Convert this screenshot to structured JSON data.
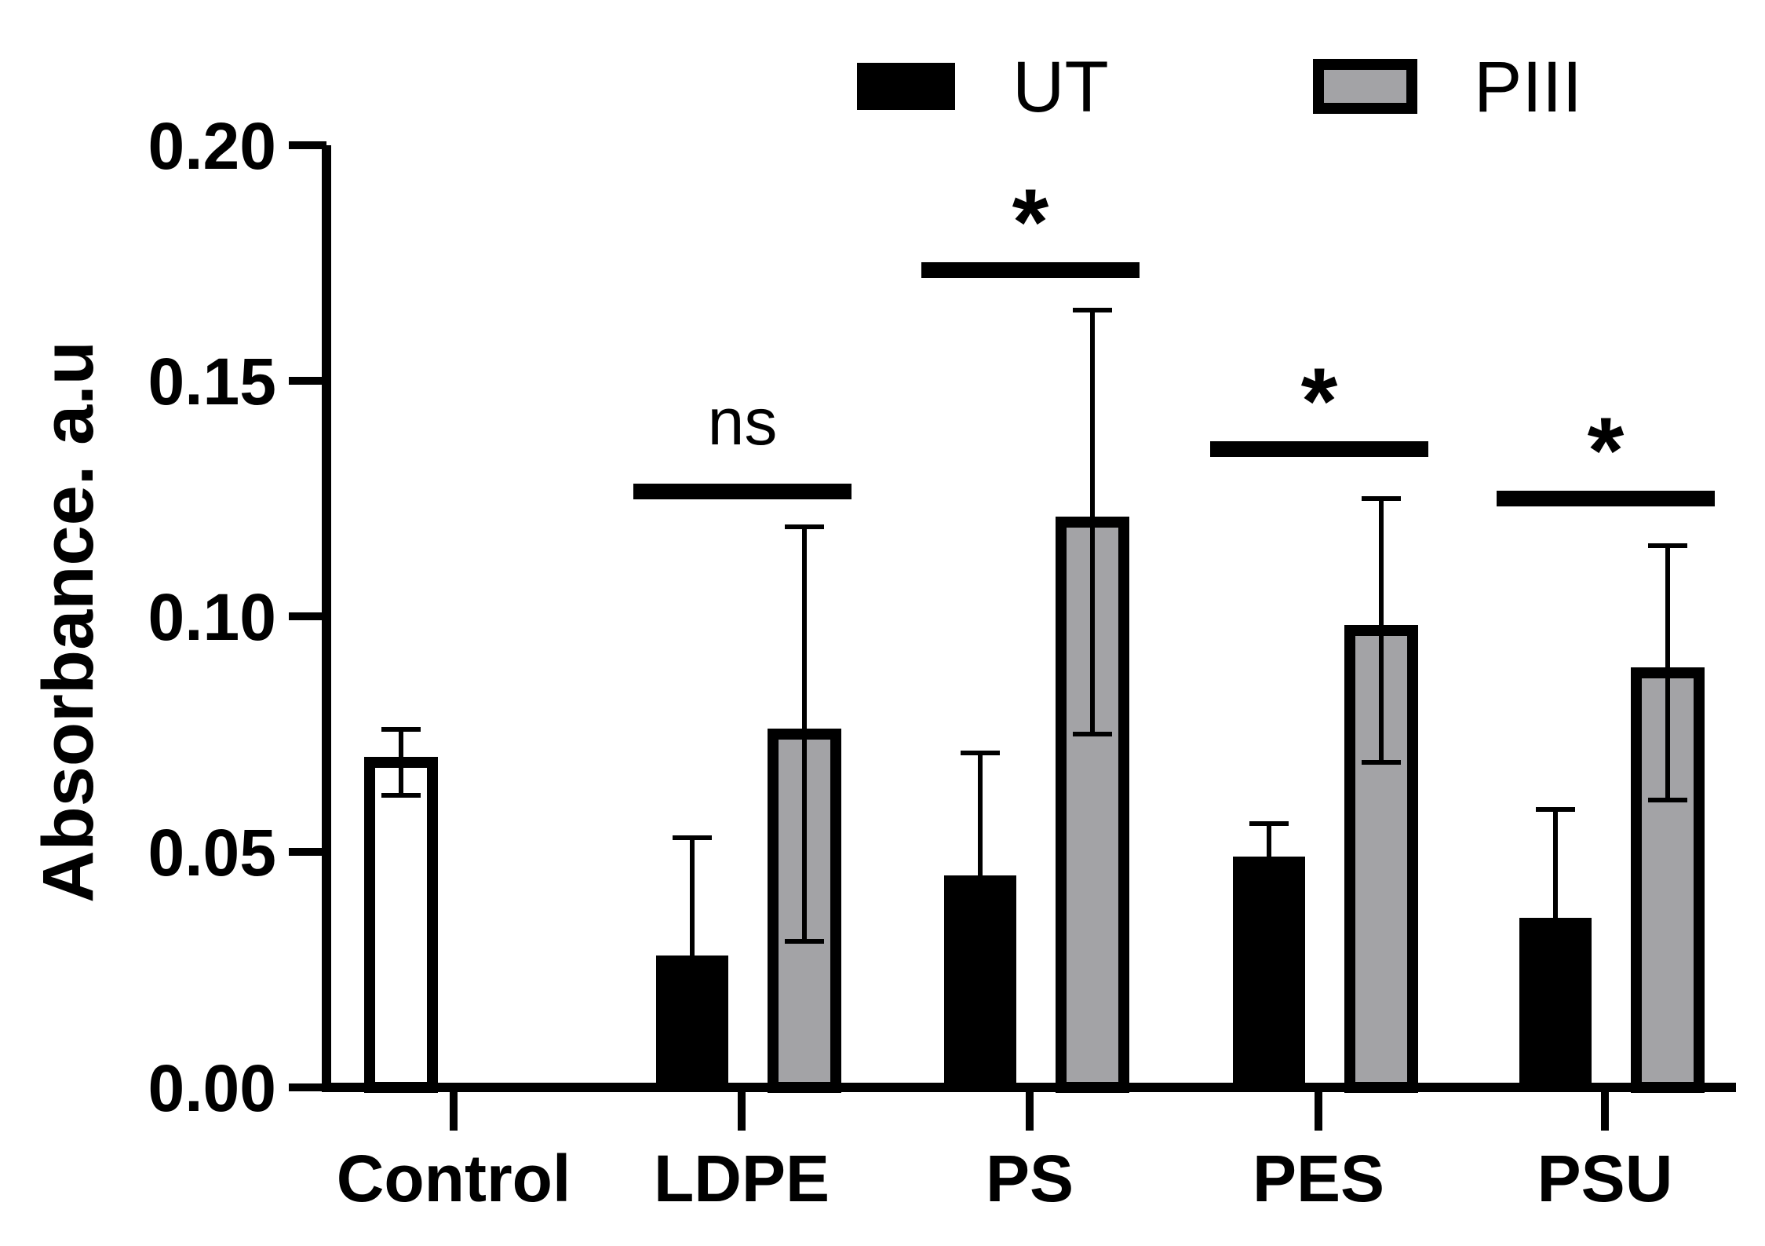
{
  "chart_data": {
    "type": "bar",
    "title": "",
    "xlabel": "",
    "ylabel": "Absorbance. a.u",
    "ylim": [
      0,
      0.2
    ],
    "yticks": [
      "0.00",
      "0.05",
      "0.10",
      "0.15",
      "0.20"
    ],
    "tick_values": [
      0,
      0.05,
      0.1,
      0.15,
      0.2
    ],
    "grid": false,
    "legend_position": "top-right",
    "categories": [
      "Control",
      "LDPE",
      "PS",
      "PES",
      "PSU"
    ],
    "control": {
      "name": "Control",
      "value": 0.069,
      "error": 0.007,
      "color": "#ffffff"
    },
    "series": [
      {
        "name": "UT",
        "color": "#000000",
        "values": [
          null,
          0.028,
          0.045,
          0.049,
          0.036
        ],
        "errors": [
          null,
          0.025,
          0.026,
          0.007,
          0.023
        ]
      },
      {
        "name": "PIII",
        "color": "#a3a3a6",
        "values": [
          null,
          0.075,
          0.12,
          0.097,
          0.088
        ],
        "errors": [
          null,
          0.044,
          0.045,
          0.028,
          0.027
        ]
      }
    ],
    "significance": [
      {
        "category": "LDPE",
        "label": "ns",
        "level": 0.1265
      },
      {
        "category": "PS",
        "label": "*",
        "level": 0.1735
      },
      {
        "category": "PES",
        "label": "*",
        "level": 0.1355
      },
      {
        "category": "PSU",
        "label": "*",
        "level": 0.125
      }
    ]
  }
}
